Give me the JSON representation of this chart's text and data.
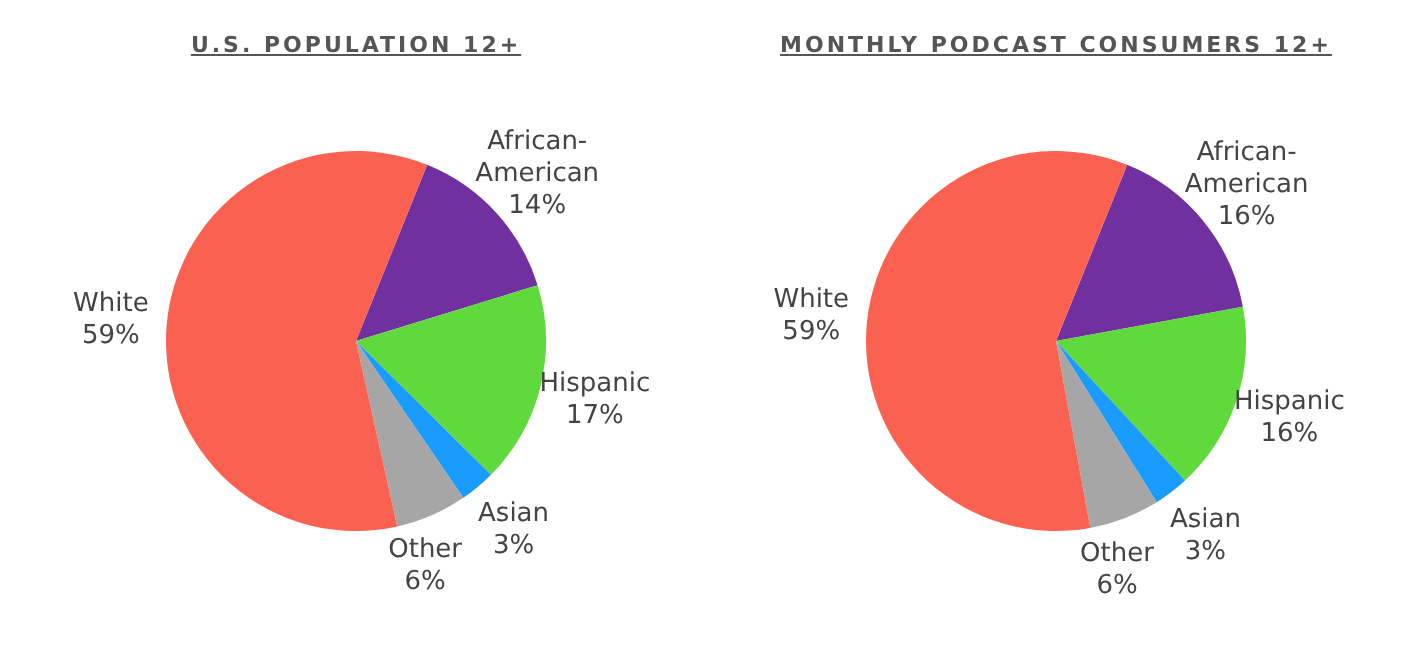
{
  "chart_data": [
    {
      "type": "pie",
      "title": "U.S. POPULATION 12+",
      "categories": [
        "African-American",
        "Hispanic",
        "Asian",
        "Other",
        "White"
      ],
      "values": [
        14,
        17,
        3,
        6,
        59
      ],
      "colors": [
        "#7030a0",
        "#5fd93c",
        "#1a9cff",
        "#a6a6a6",
        "#fb6150"
      ],
      "value_labels": [
        "14%",
        "17%",
        "3%",
        "6%",
        "59%"
      ]
    },
    {
      "type": "pie",
      "title": "MONTHLY PODCAST CONSUMERS 12+",
      "categories": [
        "African-American",
        "Hispanic",
        "Asian",
        "Other",
        "White"
      ],
      "values": [
        16,
        16,
        3,
        6,
        59
      ],
      "colors": [
        "#7030a0",
        "#5fd93c",
        "#1a9cff",
        "#a6a6a6",
        "#fb6150"
      ],
      "value_labels": [
        "16%",
        "16%",
        "3%",
        "6%",
        "59%"
      ]
    }
  ]
}
